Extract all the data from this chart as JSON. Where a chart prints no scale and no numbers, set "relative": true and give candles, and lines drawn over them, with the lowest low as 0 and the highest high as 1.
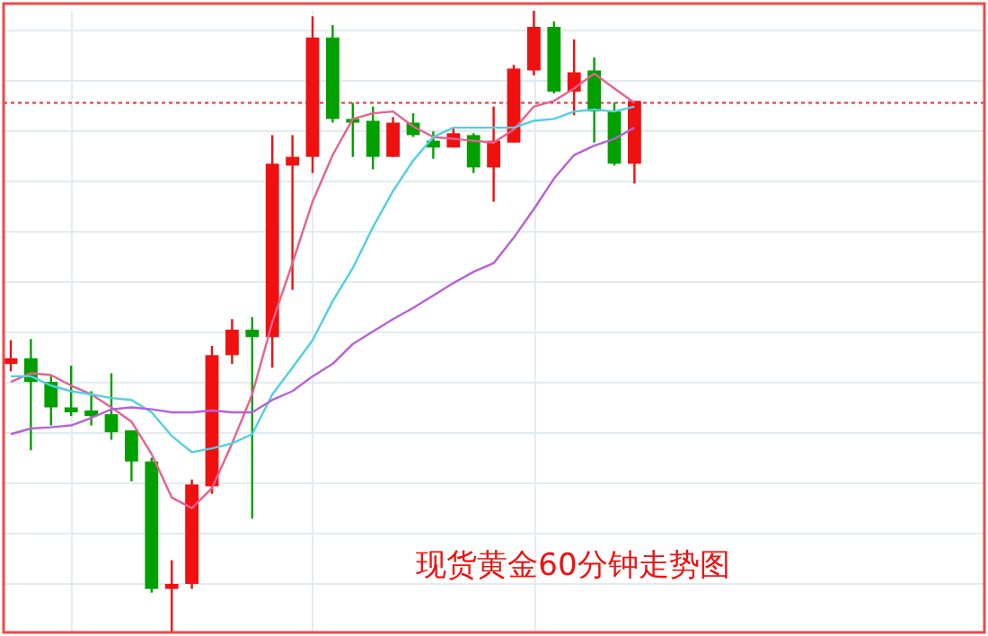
{
  "chart_data": {
    "type": "candlestick",
    "title": "现货黄金60分钟走势图",
    "relative": true,
    "grid": true,
    "categories": [
      null,
      null,
      null,
      null,
      null,
      null,
      null,
      null,
      null,
      null,
      null,
      null,
      null,
      null,
      null,
      null,
      null,
      null,
      null,
      null,
      null,
      null,
      null,
      null,
      null,
      null,
      null,
      null,
      null,
      null,
      null,
      null
    ],
    "ohlc": [
      [
        0.432,
        0.47,
        0.42,
        0.441
      ],
      [
        0.441,
        0.472,
        0.293,
        0.403
      ],
      [
        0.403,
        0.412,
        0.333,
        0.362
      ],
      [
        0.362,
        0.429,
        0.348,
        0.354
      ],
      [
        0.357,
        0.388,
        0.333,
        0.348
      ],
      [
        0.351,
        0.417,
        0.31,
        0.322
      ],
      [
        0.325,
        0.325,
        0.243,
        0.275
      ],
      [
        0.275,
        0.281,
        0.064,
        0.07
      ],
      [
        0.07,
        0.116,
        0,
        0.078
      ],
      [
        0.078,
        0.246,
        0.07,
        0.238
      ],
      [
        0.235,
        0.461,
        0.223,
        0.446
      ],
      [
        0.446,
        0.504,
        0.432,
        0.487
      ],
      [
        0.487,
        0.507,
        0.183,
        0.475
      ],
      [
        0.475,
        0.8,
        0.426,
        0.754
      ],
      [
        0.751,
        0.8,
        0.551,
        0.765
      ],
      [
        0.765,
        0.991,
        0.739,
        0.957
      ],
      [
        0.957,
        0.977,
        0.82,
        0.826
      ],
      [
        0.826,
        0.852,
        0.765,
        0.82
      ],
      [
        0.823,
        0.846,
        0.745,
        0.765
      ],
      [
        0.765,
        0.829,
        0.765,
        0.82
      ],
      [
        0.82,
        0.835,
        0.797,
        0.8
      ],
      [
        0.791,
        0.806,
        0.762,
        0.78
      ],
      [
        0.78,
        0.812,
        0.78,
        0.803
      ],
      [
        0.8,
        0.803,
        0.739,
        0.748
      ],
      [
        0.748,
        0.846,
        0.693,
        0.791
      ],
      [
        0.788,
        0.913,
        0.788,
        0.907
      ],
      [
        0.904,
        1,
        0.896,
        0.974
      ],
      [
        0.974,
        0.983,
        0.867,
        0.87
      ],
      [
        0.87,
        0.954,
        0.832,
        0.901
      ],
      [
        0.904,
        0.925,
        0.788,
        0.838
      ],
      [
        0.838,
        0.852,
        0.751,
        0.754
      ],
      [
        0.754,
        0.855,
        0.722,
        0.855
      ]
    ],
    "colors": [
      "#f01010",
      "#00a000",
      "#00a000",
      "#00a000",
      "#00a000",
      "#00a000",
      "#00a000",
      "#00a000",
      "#f01010",
      "#f01010",
      "#f01010",
      "#f01010",
      "#00a000",
      "#f01010",
      "#f01010",
      "#f01010",
      "#00a000",
      "#00a000",
      "#00a000",
      "#f01010",
      "#00a000",
      "#00a000",
      "#f01010",
      "#00a000",
      "#f01010",
      "#f01010",
      "#f01010",
      "#00a000",
      "#f01010",
      "#00a000",
      "#00a000",
      "#f01010"
    ],
    "series": [
      {
        "type": "line",
        "color": "#e8608f",
        "values": [
          0.403,
          0.417,
          0.414,
          0.397,
          0.383,
          0.362,
          0.339,
          0.287,
          0.217,
          0.2,
          0.232,
          0.304,
          0.383,
          0.499,
          0.594,
          0.693,
          0.768,
          0.826,
          0.835,
          0.838,
          0.814,
          0.797,
          0.794,
          0.791,
          0.788,
          0.809,
          0.846,
          0.855,
          0.875,
          0.899,
          0.875,
          0.852
        ]
      },
      {
        "type": "line",
        "color": "#4fd0e0",
        "values": [
          0.412,
          0.412,
          0.397,
          0.388,
          0.383,
          0.377,
          0.374,
          0.354,
          0.316,
          0.29,
          0.296,
          0.304,
          0.319,
          0.383,
          0.426,
          0.47,
          0.533,
          0.586,
          0.652,
          0.71,
          0.759,
          0.797,
          0.812,
          0.812,
          0.812,
          0.812,
          0.823,
          0.826,
          0.838,
          0.841,
          0.838,
          0.846
        ]
      },
      {
        "type": "line",
        "color": "#b860d8",
        "values": [
          0.319,
          0.328,
          0.33,
          0.333,
          0.345,
          0.359,
          0.362,
          0.359,
          0.354,
          0.354,
          0.357,
          0.354,
          0.354,
          0.374,
          0.388,
          0.412,
          0.432,
          0.464,
          0.484,
          0.504,
          0.522,
          0.542,
          0.562,
          0.58,
          0.594,
          0.635,
          0.681,
          0.73,
          0.768,
          0.783,
          0.794,
          0.812
        ]
      }
    ],
    "ref_lines": [
      {
        "axis": "y",
        "value": 0.852,
        "color": "#e03030",
        "line_style": "dotted"
      }
    ]
  }
}
